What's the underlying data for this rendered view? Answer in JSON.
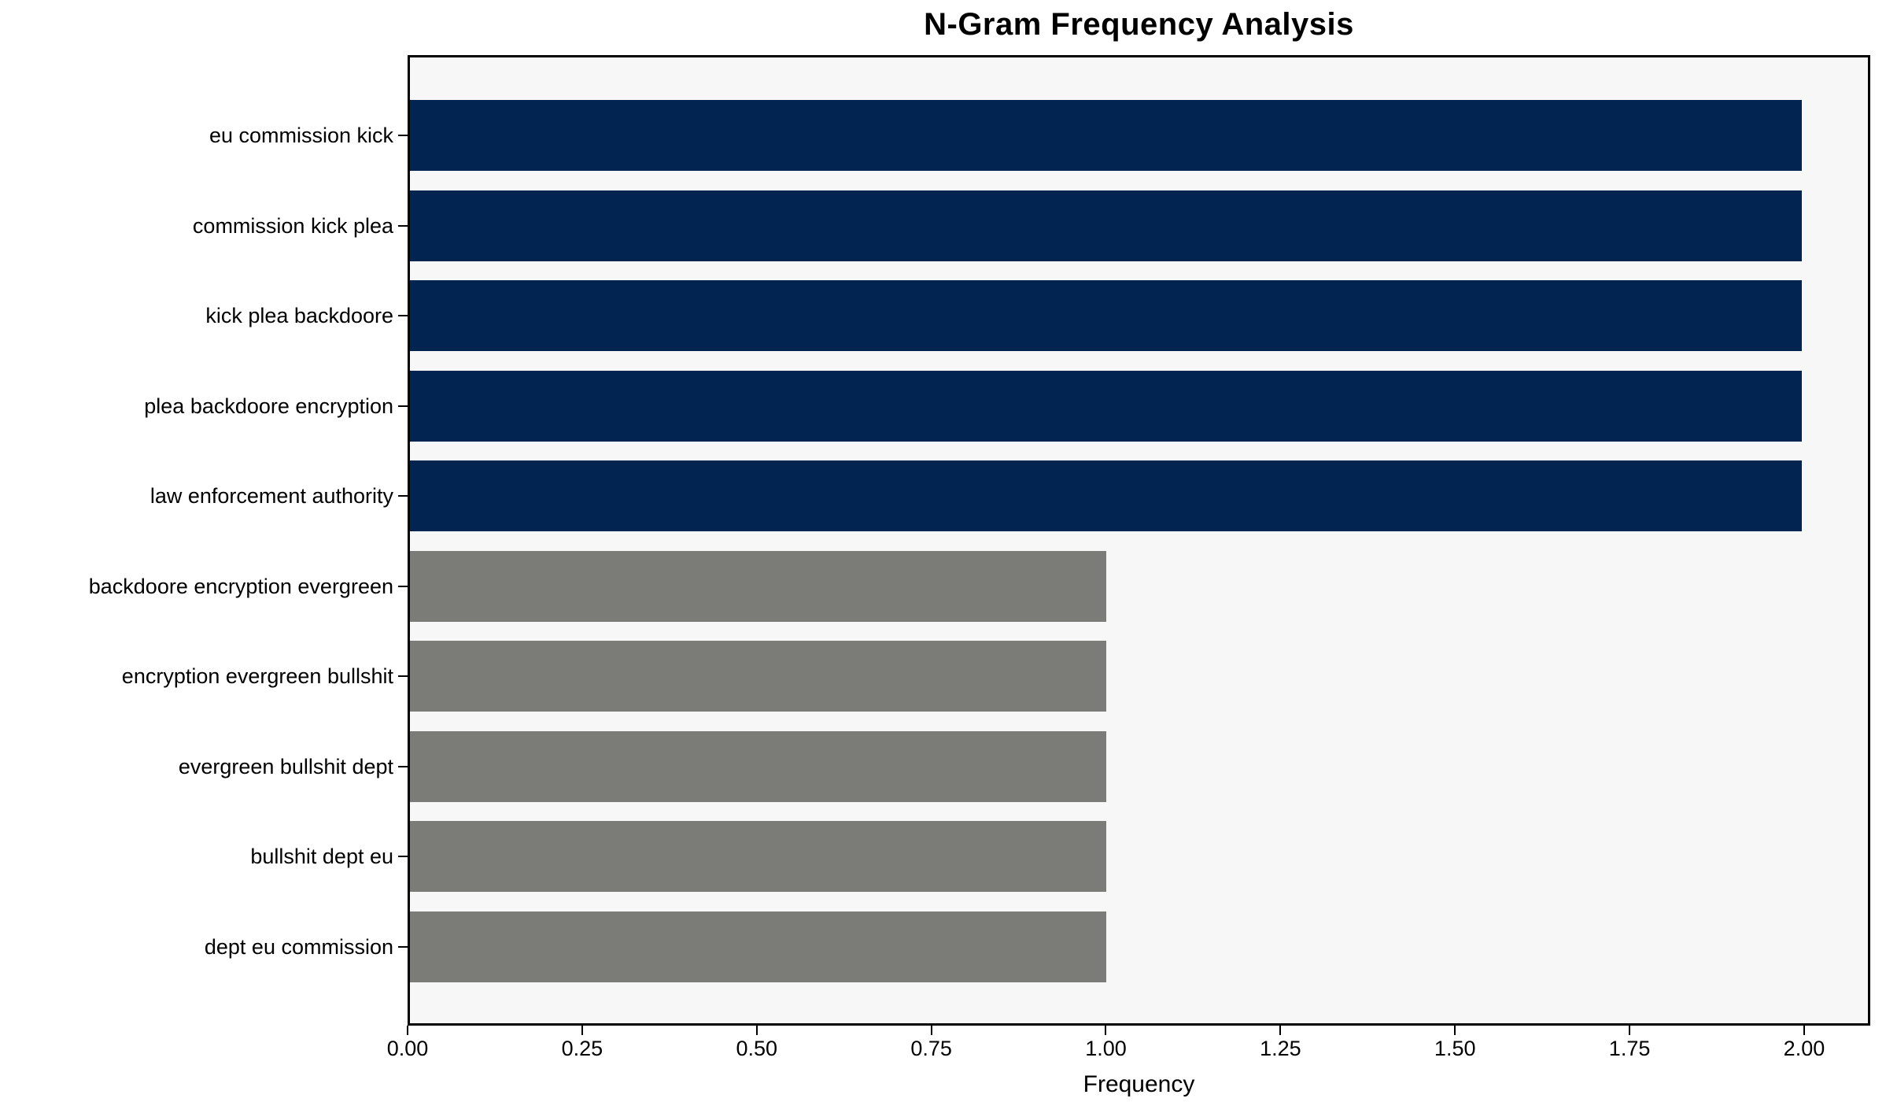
{
  "chart_data": {
    "type": "bar",
    "orientation": "horizontal",
    "title": "N-Gram Frequency Analysis",
    "xlabel": "Frequency",
    "ylabel": "",
    "categories": [
      "eu commission kick",
      "commission kick plea",
      "kick plea backdoore",
      "plea backdoore encryption",
      "law enforcement authority",
      "backdoore encryption evergreen",
      "encryption evergreen bullshit",
      "evergreen bullshit dept",
      "bullshit dept eu",
      "dept eu commission"
    ],
    "values": [
      2,
      2,
      2,
      2,
      2,
      1,
      1,
      1,
      1,
      1
    ],
    "bar_colors": [
      "#022450",
      "#022450",
      "#022450",
      "#022450",
      "#022450",
      "#7b7b78",
      "#7b7b78",
      "#7b7b78",
      "#7b7b78",
      "#7b7b78"
    ],
    "x_ticks": [
      "0.00",
      "0.25",
      "0.50",
      "0.75",
      "1.00",
      "1.25",
      "1.50",
      "1.75",
      "2.00"
    ],
    "x_tick_values": [
      0,
      0.25,
      0.5,
      0.75,
      1.0,
      1.25,
      1.5,
      1.75,
      2.0
    ],
    "xlim": [
      0,
      2.0947
    ],
    "grid": "off",
    "legend": "none",
    "plot_background": "#f7f7f7",
    "figure_background": "#ffffff",
    "frame_color": "#000000"
  }
}
